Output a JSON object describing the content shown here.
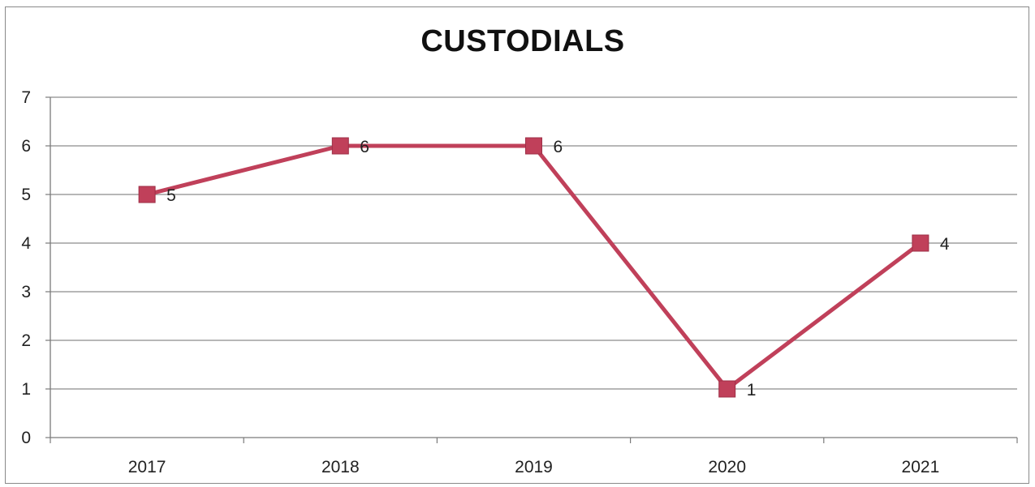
{
  "chart_data": {
    "type": "line",
    "title": "CUSTODIALS",
    "categories": [
      "2017",
      "2018",
      "2019",
      "2020",
      "2021"
    ],
    "series": [
      {
        "values": [
          5,
          6,
          6,
          1,
          4
        ],
        "color": "#c0405a",
        "marker": "square",
        "data_labels": true
      }
    ],
    "xlabel": "",
    "ylabel": "",
    "ylim": [
      0,
      7
    ],
    "yticks": [
      "0",
      "1",
      "2",
      "3",
      "4",
      "5",
      "6",
      "7"
    ],
    "grid": "horizontal",
    "legend": "none"
  }
}
